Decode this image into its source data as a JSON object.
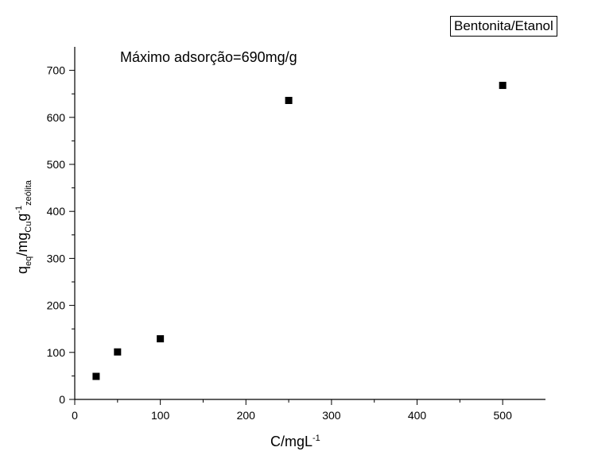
{
  "chart_data": {
    "type": "scatter",
    "legend": "Bentonita/Etanol",
    "legend_position": "top-right",
    "annotation": "Máximo adsorção=690mg/g",
    "xlabel": {
      "main": "C/mgL",
      "sup": "-1"
    },
    "ylabel": {
      "q": "q",
      "q_sub": "eq",
      "mid": "/mg",
      "mid_sub": "Cu",
      "g": "g",
      "g_sup": "-1",
      "g_sub": "zeólita"
    },
    "xlim": [
      0,
      550
    ],
    "ylim": [
      0,
      750
    ],
    "x_ticks": [
      0,
      100,
      200,
      300,
      400,
      500
    ],
    "y_ticks": [
      0,
      100,
      200,
      300,
      400,
      500,
      600,
      700
    ],
    "grid": false,
    "series": [
      {
        "x": [
          25,
          50,
          100,
          250,
          500
        ],
        "y": [
          49,
          101,
          129,
          636,
          668
        ],
        "marker": "square",
        "color": "#000000"
      }
    ]
  }
}
